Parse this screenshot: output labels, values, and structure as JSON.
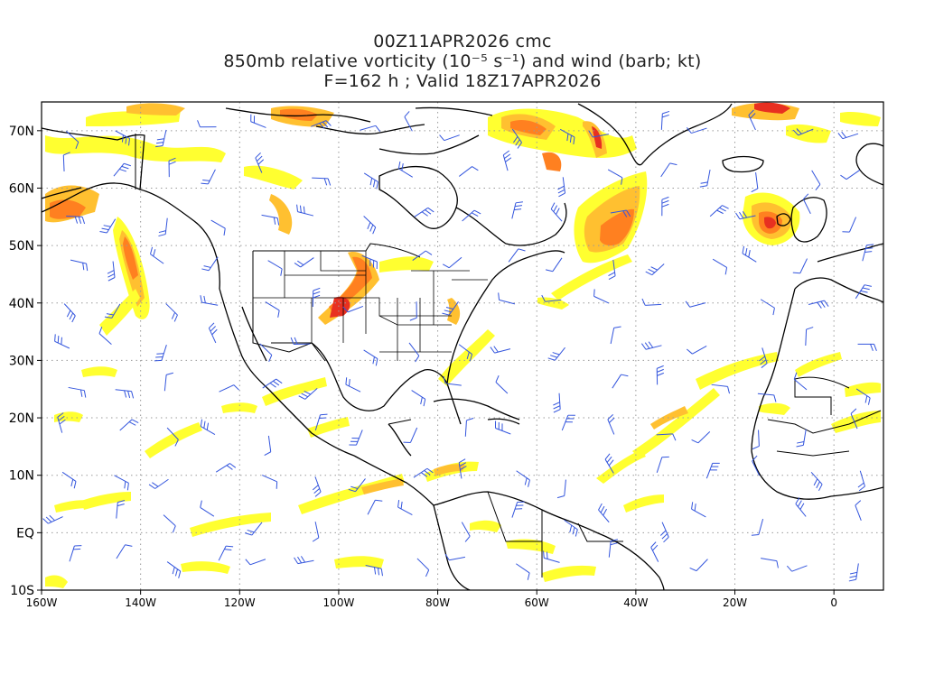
{
  "header": {
    "line1": "00Z11APR2026 cmc",
    "line2": "850mb relative vorticity (10⁻⁵ s⁻¹) and wind (barb; kt)",
    "line3": "F=162 h ; Valid 18Z17APR2026"
  },
  "map": {
    "lon_range": [
      -160,
      10
    ],
    "lat_range": [
      -10,
      75
    ],
    "lat_ticks": [
      "70N",
      "60N",
      "50N",
      "40N",
      "30N",
      "20N",
      "10N",
      "EQ",
      "10S"
    ],
    "lon_ticks": [
      "160W",
      "140W",
      "120W",
      "100W",
      "80W",
      "60W",
      "40W",
      "20W",
      "0"
    ],
    "colors": {
      "coast": "#000000",
      "grid": "#9a9a9a",
      "barb": "#3355dd",
      "vort_low": "#ffff30",
      "vort_mid": "#ffc030",
      "vort_high": "#ff8020",
      "vort_max": "#e83020"
    }
  }
}
